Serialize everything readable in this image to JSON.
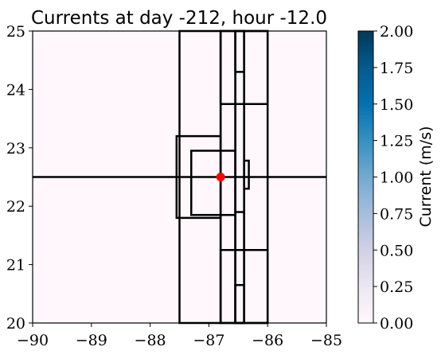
{
  "chart_data": {
    "type": "heatmap",
    "title": "Currents at day -212, hour -12.0",
    "xlabel": "",
    "ylabel": "",
    "xlim": [
      -90,
      -85
    ],
    "ylim": [
      20,
      25
    ],
    "x_ticks": [
      -90,
      -89,
      -88,
      -87,
      -86,
      -85
    ],
    "x_tick_labels": [
      "−90",
      "−89",
      "−88",
      "−87",
      "−86",
      "−85"
    ],
    "y_ticks": [
      20,
      21,
      22,
      23,
      24,
      25
    ],
    "y_tick_labels": [
      "20",
      "21",
      "22",
      "23",
      "24",
      "25"
    ],
    "field_value": 0.0,
    "field_color": "#fff7fb",
    "colorbar": {
      "label": "Current (m/s)",
      "range": [
        0,
        2
      ],
      "ticks": [
        0,
        0.25,
        0.5,
        0.75,
        1.0,
        1.25,
        1.5,
        1.75,
        2.0
      ],
      "tick_labels": [
        "0.00",
        "0.25",
        "0.50",
        "0.75",
        "1.00",
        "1.25",
        "1.50",
        "1.75",
        "2.00"
      ],
      "colors": [
        "#fff7fb",
        "#ece7f2",
        "#d0d1e6",
        "#a6bddb",
        "#74a9cf",
        "#3690c0",
        "#0570b0",
        "#045a8d",
        "#023858"
      ]
    },
    "grid_boxes": [
      {
        "x": [
          -87.5,
          -86.8
        ],
        "y": [
          20,
          25
        ]
      },
      {
        "x": [
          -86.8,
          -86.55
        ],
        "y": [
          20,
          25
        ]
      },
      {
        "x": [
          -86.55,
          -86.4
        ],
        "y": [
          20,
          25
        ]
      },
      {
        "x": [
          -86.4,
          -86.0
        ],
        "y": [
          20,
          25
        ]
      },
      {
        "x": [
          -86.55,
          -86.4
        ],
        "y": [
          24.3,
          25
        ]
      },
      {
        "x": [
          -86.8,
          -86.0
        ],
        "y": [
          23.75,
          25
        ]
      },
      {
        "x": [
          -87.55,
          -86.8
        ],
        "y": [
          21.8,
          23.2
        ]
      },
      {
        "x": [
          -87.3,
          -86.55
        ],
        "y": [
          21.85,
          22.95
        ]
      },
      {
        "x": [
          -86.4,
          -86.32
        ],
        "y": [
          22.3,
          22.78
        ]
      },
      {
        "x": [
          -86.55,
          -86.4
        ],
        "y": [
          20,
          21.9
        ]
      },
      {
        "x": [
          -86.8,
          -86.0
        ],
        "y": [
          20,
          21.25
        ]
      },
      {
        "x": [
          -86.55,
          -86.4
        ],
        "y": [
          20,
          20.65
        ]
      }
    ],
    "horizontal_lines": [
      22.5
    ],
    "marker": {
      "x": -86.8,
      "y": 22.5,
      "color": "#ff0000"
    }
  }
}
